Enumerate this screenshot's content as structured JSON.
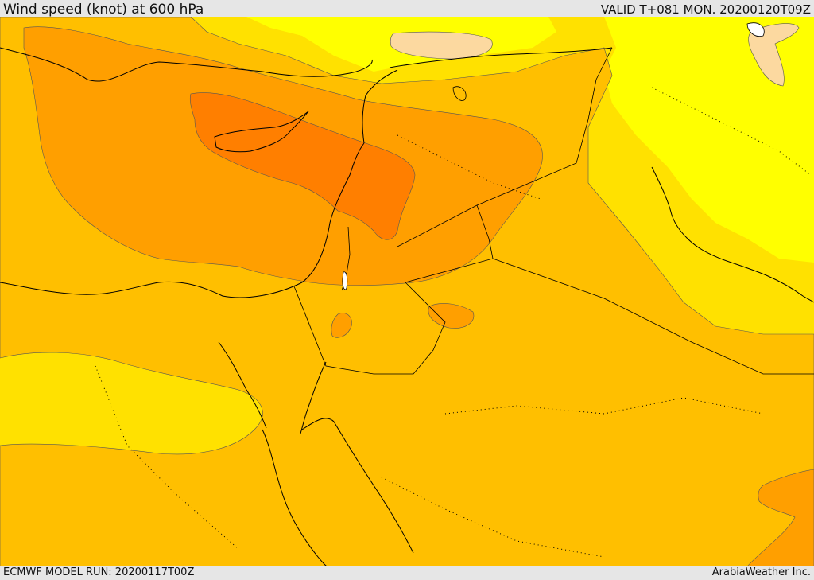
{
  "header": {
    "title": "Wind speed (knot) at 600 hPa",
    "valid_time": "VALID T+081 MON. 20200120T09Z"
  },
  "footer": {
    "model_run": "ECMWF MODEL RUN: 20200117T00Z",
    "provider": "ArabiaWeather Inc."
  },
  "map": {
    "field": "wind-speed",
    "pressure_level_hpa": 600,
    "unit": "knot",
    "fill_colors": {
      "very_light": "#fcd9a0",
      "lightest": "#ffff00",
      "light": "#ffe100",
      "mid": "#ffbf00",
      "strong": "#ff9f00",
      "strongest": "#ff7f00"
    },
    "line_colors": {
      "coastline": "#000000",
      "border": "#000000",
      "contour": "#555555"
    }
  }
}
